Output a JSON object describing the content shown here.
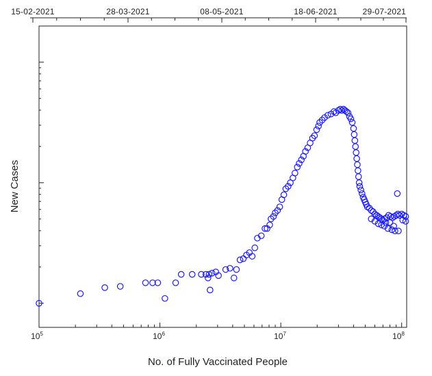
{
  "chart_data": {
    "type": "scatter",
    "title": "",
    "xlabel": "No. of Fully Vaccinated People",
    "ylabel": "New Cases",
    "x_scale": "log",
    "y_scale": "log",
    "xlim": [
      100000,
      110000000
    ],
    "ylim_decades": [
      -0.2,
      2.3
    ],
    "x_ticks": [
      {
        "base": "10",
        "exp": "5",
        "value": 100000
      },
      {
        "base": "10",
        "exp": "6",
        "value": 1000000
      },
      {
        "base": "10",
        "exp": "7",
        "value": 10000000
      },
      {
        "base": "10",
        "exp": "8",
        "value": 100000000
      }
    ],
    "y_tick_labels_shown": false,
    "top_axis_dates": [
      "15-02-2021",
      "28-03-2021",
      "08-05-2021",
      "18-06-2021",
      "29-07-2021"
    ],
    "marker": "hollow circle",
    "marker_color": "#1a1aff",
    "grid": false,
    "legend": "none",
    "points": [
      [
        100000,
        0.0
      ],
      [
        220000,
        0.08
      ],
      [
        350000,
        0.13
      ],
      [
        470000,
        0.14
      ],
      [
        760000,
        0.17
      ],
      [
        870000,
        0.17
      ],
      [
        960000,
        0.17
      ],
      [
        1100000,
        0.04
      ],
      [
        1350000,
        0.17
      ],
      [
        1500000,
        0.24
      ],
      [
        1850000,
        0.24
      ],
      [
        2200000,
        0.24
      ],
      [
        2400000,
        0.24
      ],
      [
        2500000,
        0.21
      ],
      [
        2550000,
        0.24
      ],
      [
        2600000,
        0.11
      ],
      [
        2700000,
        0.25
      ],
      [
        2900000,
        0.26
      ],
      [
        3050000,
        0.23
      ],
      [
        3500000,
        0.28
      ],
      [
        3800000,
        0.29
      ],
      [
        4100000,
        0.21
      ],
      [
        4300000,
        0.28
      ],
      [
        4600000,
        0.36
      ],
      [
        4900000,
        0.37
      ],
      [
        5200000,
        0.4
      ],
      [
        5500000,
        0.42
      ],
      [
        5800000,
        0.39
      ],
      [
        6100000,
        0.46
      ],
      [
        6400000,
        0.54
      ],
      [
        6900000,
        0.56
      ],
      [
        7400000,
        0.62
      ],
      [
        7700000,
        0.62
      ],
      [
        8100000,
        0.65
      ],
      [
        8300000,
        0.7
      ],
      [
        8700000,
        0.72
      ],
      [
        9000000,
        0.75
      ],
      [
        9400000,
        0.77
      ],
      [
        9800000,
        0.8
      ],
      [
        10200000,
        0.86
      ],
      [
        10600000,
        0.9
      ],
      [
        11000000,
        0.95
      ],
      [
        11500000,
        0.97
      ],
      [
        12000000,
        1.0
      ],
      [
        12600000,
        1.04
      ],
      [
        13100000,
        1.08
      ],
      [
        13700000,
        1.13
      ],
      [
        14200000,
        1.16
      ],
      [
        14800000,
        1.19
      ],
      [
        15400000,
        1.22
      ],
      [
        16000000,
        1.26
      ],
      [
        16700000,
        1.29
      ],
      [
        17500000,
        1.33
      ],
      [
        18300000,
        1.37
      ],
      [
        19000000,
        1.39
      ],
      [
        19800000,
        1.44
      ],
      [
        20500000,
        1.47
      ],
      [
        21000000,
        1.5
      ],
      [
        22000000,
        1.52
      ],
      [
        23000000,
        1.54
      ],
      [
        24500000,
        1.56
      ],
      [
        26000000,
        1.57
      ],
      [
        27500000,
        1.59
      ],
      [
        28500000,
        1.58
      ],
      [
        30000000,
        1.6
      ],
      [
        31000000,
        1.61
      ],
      [
        32000000,
        1.6
      ],
      [
        33000000,
        1.61
      ],
      [
        34000000,
        1.6
      ],
      [
        35000000,
        1.59
      ],
      [
        36000000,
        1.58
      ],
      [
        37000000,
        1.55
      ],
      [
        38000000,
        1.53
      ],
      [
        39000000,
        1.5
      ],
      [
        40000000,
        1.45
      ],
      [
        40500000,
        1.4
      ],
      [
        41000000,
        1.35
      ],
      [
        41500000,
        1.3
      ],
      [
        42000000,
        1.25
      ],
      [
        42500000,
        1.2
      ],
      [
        43000000,
        1.15
      ],
      [
        43500000,
        1.1
      ],
      [
        44000000,
        1.05
      ],
      [
        44500000,
        1.0
      ],
      [
        45000000,
        0.97
      ],
      [
        46000000,
        0.94
      ],
      [
        47000000,
        0.91
      ],
      [
        48000000,
        0.88
      ],
      [
        49000000,
        0.86
      ],
      [
        50000000,
        0.84
      ],
      [
        51000000,
        0.82
      ],
      [
        52000000,
        0.8
      ],
      [
        54000000,
        0.79
      ],
      [
        56000000,
        0.77
      ],
      [
        58000000,
        0.76
      ],
      [
        60000000,
        0.74
      ],
      [
        62000000,
        0.73
      ],
      [
        64000000,
        0.72
      ],
      [
        66000000,
        0.71
      ],
      [
        68000000,
        0.7
      ],
      [
        70000000,
        0.69
      ],
      [
        72000000,
        0.7
      ],
      [
        75000000,
        0.71
      ],
      [
        78000000,
        0.73
      ],
      [
        81000000,
        0.72
      ],
      [
        84000000,
        0.71
      ],
      [
        87000000,
        0.72
      ],
      [
        90000000,
        0.73
      ],
      [
        93000000,
        0.74
      ],
      [
        96000000,
        0.73
      ],
      [
        100000000,
        0.74
      ],
      [
        104000000,
        0.73
      ],
      [
        108000000,
        0.72
      ],
      [
        56000000,
        0.7
      ],
      [
        60000000,
        0.68
      ],
      [
        64000000,
        0.66
      ],
      [
        68000000,
        0.65
      ],
      [
        72000000,
        0.64
      ],
      [
        77000000,
        0.62
      ],
      [
        83000000,
        0.61
      ],
      [
        88000000,
        0.6
      ],
      [
        94000000,
        0.6
      ],
      [
        102000000,
        0.69
      ],
      [
        92000000,
        0.91
      ],
      [
        108000000,
        0.68
      ],
      [
        86000000,
        0.64
      ],
      [
        80000000,
        0.67
      ],
      [
        74000000,
        0.67
      ]
    ]
  }
}
